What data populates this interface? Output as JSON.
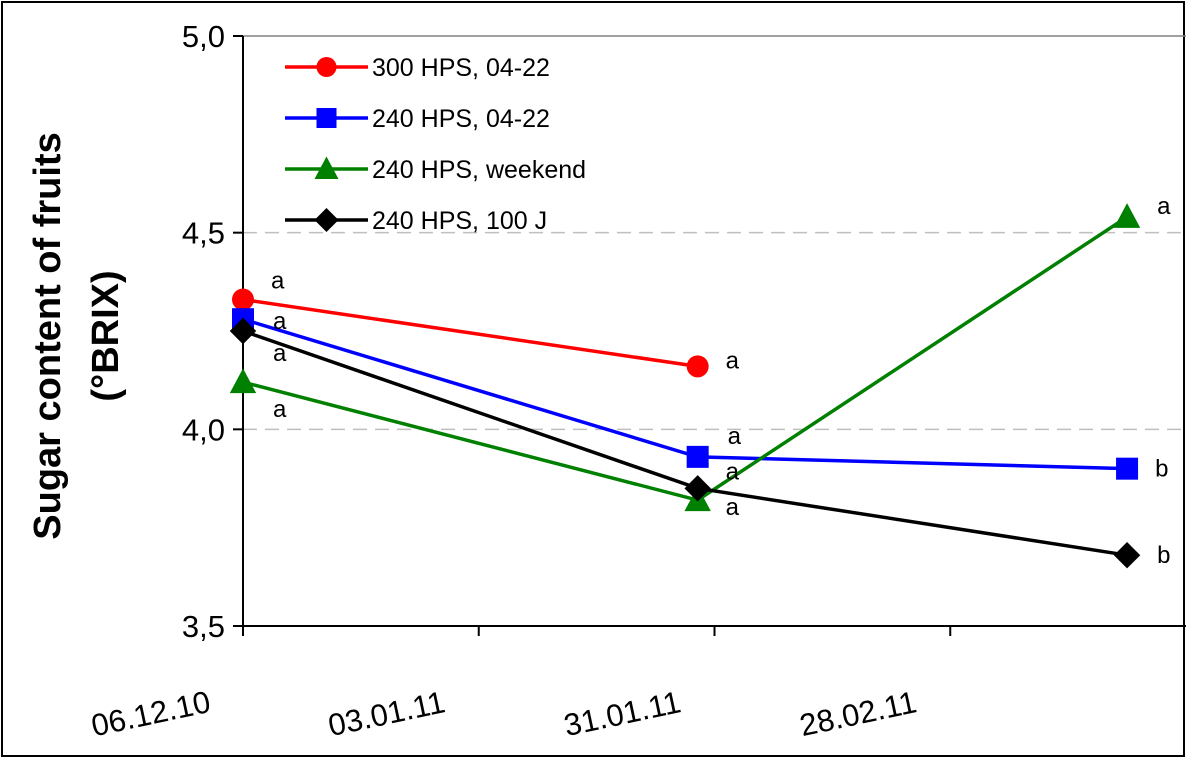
{
  "chart_data": {
    "type": "line",
    "title": "",
    "xlabel": "",
    "ylabel_lines": [
      "Sugar content of fruits",
      "(°BRIX)"
    ],
    "ylim": [
      3.5,
      5.0
    ],
    "yticks": [
      "3,5",
      "4,0",
      "4,5",
      "5,0"
    ],
    "xticks": [
      "06.12.10",
      "03.01.11",
      "31.01.11",
      "28.02.11"
    ],
    "xlim": [
      "2010-12-06",
      "2011-03-28"
    ],
    "gridlines": "dashed at 4,0 and 4,5",
    "legend_position": "top-left",
    "series": [
      {
        "name": "300 HPS, 04-22",
        "color": "#ff0000",
        "marker": "circle",
        "points": [
          {
            "x": "2010-12-06",
            "y": 4.33,
            "label": "a"
          },
          {
            "x": "2011-01-29",
            "y": 4.16,
            "label": "a"
          }
        ]
      },
      {
        "name": "240 HPS, 04-22",
        "color": "#0000ff",
        "marker": "square",
        "points": [
          {
            "x": "2010-12-06",
            "y": 4.28,
            "label": "a"
          },
          {
            "x": "2011-01-29",
            "y": 3.93,
            "label": "a"
          },
          {
            "x": "2011-03-21",
            "y": 3.9,
            "label": "b"
          }
        ]
      },
      {
        "name": "240 HPS, weekend",
        "color": "#008000",
        "marker": "triangle",
        "points": [
          {
            "x": "2010-12-06",
            "y": 4.12,
            "label": "a"
          },
          {
            "x": "2011-01-29",
            "y": 3.82,
            "label": "a"
          },
          {
            "x": "2011-03-21",
            "y": 4.54,
            "label": "a"
          }
        ]
      },
      {
        "name": "240 HPS, 100 J",
        "color": "#000000",
        "marker": "diamond",
        "points": [
          {
            "x": "2010-12-06",
            "y": 4.25,
            "label": "a"
          },
          {
            "x": "2011-01-29",
            "y": 3.85,
            "label": "a"
          },
          {
            "x": "2011-03-21",
            "y": 3.68,
            "label": "b"
          }
        ]
      }
    ]
  }
}
